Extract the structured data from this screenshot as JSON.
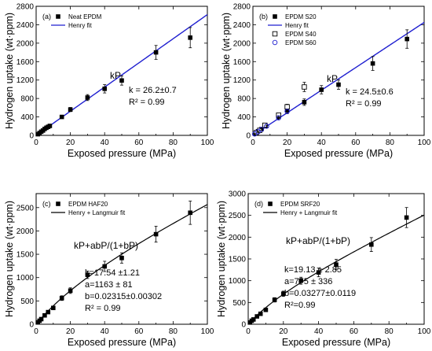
{
  "chart_data": [
    {
      "type": "scatter",
      "panel_label": "(a)",
      "xlabel": "Exposed pressure (MPa)",
      "ylabel": "Hydrogen uptake (wt·ppm)",
      "xlim": [
        0,
        100
      ],
      "ylim": [
        0,
        2800
      ],
      "xticks": [
        0,
        20,
        40,
        60,
        80,
        100
      ],
      "yticks": [
        0,
        400,
        800,
        1200,
        1600,
        2000,
        2400,
        2800
      ],
      "legend": [
        {
          "name": "Neat EPDM",
          "marker": "square-filled",
          "color": "#000000"
        },
        {
          "name": "Henry fit",
          "marker": "line",
          "color": "#1f1fd0"
        }
      ],
      "series": [
        {
          "name": "Neat EPDM",
          "marker": "square-filled",
          "color": "#000000",
          "points": [
            [
              1,
              25,
              10
            ],
            [
              2,
              50,
              10
            ],
            [
              3,
              80,
              12
            ],
            [
              4,
              105,
              15
            ],
            [
              5,
              140,
              20
            ],
            [
              6,
              165,
              20
            ],
            [
              7,
              185,
              25
            ],
            [
              8,
              205,
              25
            ],
            [
              15,
              400,
              30
            ],
            [
              20,
              560,
              45
            ],
            [
              30,
              820,
              65
            ],
            [
              40,
              1010,
              90
            ],
            [
              50,
              1190,
              100
            ],
            [
              70,
              1800,
              150
            ],
            [
              90,
              2120,
              220
            ]
          ]
        }
      ],
      "fit": {
        "name": "Henry fit",
        "kind": "henry",
        "k": 26.2,
        "x": [
          0,
          100
        ],
        "color": "#1f1fd0"
      },
      "annotations": {
        "model": "kP",
        "params": [
          "k = 26.2±0.7",
          "R² = 0.99"
        ]
      }
    },
    {
      "type": "scatter",
      "panel_label": "(b)",
      "xlabel": "Exposed pressure (MPa)",
      "ylabel": "Hydrogen uptake (wt·ppm)",
      "xlim": [
        0,
        100
      ],
      "ylim": [
        0,
        2800
      ],
      "xticks": [
        0,
        20,
        40,
        60,
        80,
        100
      ],
      "yticks": [
        0,
        400,
        800,
        1200,
        1600,
        2000,
        2400,
        2800
      ],
      "legend": [
        {
          "name": "EPDM S20",
          "marker": "square-filled",
          "color": "#000000"
        },
        {
          "name": "Henry fit",
          "marker": "line",
          "color": "#1f1fd0"
        },
        {
          "name": "EPDM S40",
          "marker": "square-open",
          "color": "#000000"
        },
        {
          "name": "EPDM S60",
          "marker": "circle-open",
          "color": "#1f1fd0"
        }
      ],
      "series": [
        {
          "name": "EPDM S20",
          "marker": "square-filled",
          "color": "#000000",
          "points": [
            [
              2,
              60,
              10
            ],
            [
              3,
              90,
              12
            ],
            [
              4,
              110,
              15
            ],
            [
              5,
              135,
              18
            ],
            [
              7,
              200,
              20
            ],
            [
              15,
              410,
              35
            ],
            [
              20,
              550,
              45
            ],
            [
              30,
              720,
              70
            ],
            [
              40,
              990,
              90
            ],
            [
              50,
              1100,
              100
            ],
            [
              70,
              1560,
              150
            ],
            [
              90,
              2090,
              200
            ]
          ]
        },
        {
          "name": "EPDM S40",
          "marker": "square-open",
          "color": "#000000",
          "points": [
            [
              2,
              60,
              10
            ],
            [
              4,
              110,
              15
            ],
            [
              7,
              220,
              25
            ],
            [
              15,
              440,
              40
            ],
            [
              20,
              620,
              55
            ],
            [
              30,
              1050,
              100
            ]
          ]
        },
        {
          "name": "EPDM S60",
          "marker": "circle-open",
          "color": "#1f1fd0",
          "points": [
            [
              1,
              30,
              10
            ],
            [
              3,
              80,
              12
            ],
            [
              5,
              130,
              15
            ],
            [
              8,
              200,
              20
            ],
            [
              15,
              380,
              35
            ],
            [
              20,
              520,
              50
            ]
          ]
        }
      ],
      "fit": {
        "name": "Henry fit",
        "kind": "henry",
        "k": 24.5,
        "x": [
          0,
          100
        ],
        "color": "#1f1fd0"
      },
      "annotations": {
        "model": "kP",
        "params": [
          "k = 24.5±0.6",
          "R² = 0.99"
        ]
      }
    },
    {
      "type": "scatter",
      "panel_label": "(c)",
      "xlabel": "Exposed pressure (MPa)",
      "ylabel": "Hydrogen uptake (wt·ppm)",
      "xlim": [
        0,
        100
      ],
      "ylim": [
        0,
        2800
      ],
      "xticks": [
        0,
        20,
        40,
        60,
        80,
        100
      ],
      "yticks": [
        0,
        500,
        1000,
        1500,
        2000,
        2500
      ],
      "legend": [
        {
          "name": "EPDM HAF20",
          "marker": "square-filled",
          "color": "#000000"
        },
        {
          "name": "Henry + Langmuir fit",
          "marker": "line",
          "color": "#000000"
        }
      ],
      "series": [
        {
          "name": "EPDM HAF20",
          "marker": "square-filled",
          "color": "#000000",
          "points": [
            [
              1,
              40,
              10
            ],
            [
              2,
              75,
              15
            ],
            [
              3,
              110,
              15
            ],
            [
              5,
              190,
              20
            ],
            [
              7,
              260,
              25
            ],
            [
              10,
              350,
              30
            ],
            [
              15,
              560,
              50
            ],
            [
              20,
              720,
              60
            ],
            [
              30,
              1060,
              80
            ],
            [
              40,
              1240,
              110
            ],
            [
              50,
              1420,
              110
            ],
            [
              70,
              1930,
              170
            ],
            [
              90,
              2390,
              250
            ]
          ]
        }
      ],
      "fit": {
        "name": "Henry + Langmuir fit",
        "kind": "henry_langmuir",
        "k": 17.54,
        "a": 1163,
        "b": 0.02315,
        "x": [
          0,
          100
        ],
        "color": "#000000"
      },
      "annotations": {
        "model": "kP+abP/(1+bP)",
        "params": [
          "k=17.54 ±1.21",
          "a=1163 ± 81",
          "b=0.02315±0.00302",
          "R² = 0.99"
        ]
      }
    },
    {
      "type": "scatter",
      "panel_label": "(d)",
      "xlabel": "Exposed pressure (MPa)",
      "ylabel": "Hydrogen uptake (wt·ppm)",
      "xlim": [
        0,
        100
      ],
      "ylim": [
        0,
        3000
      ],
      "xticks": [
        0,
        20,
        40,
        60,
        80,
        100
      ],
      "yticks": [
        0,
        500,
        1000,
        1500,
        2000,
        2500,
        3000
      ],
      "legend": [
        {
          "name": "EPDM SRF20",
          "marker": "square-filled",
          "color": "#000000"
        },
        {
          "name": "Henry + Langmuir fit",
          "marker": "line",
          "color": "#000000"
        }
      ],
      "series": [
        {
          "name": "EPDM SRF20",
          "marker": "square-filled",
          "color": "#000000",
          "points": [
            [
              1,
              40,
              10
            ],
            [
              2,
              80,
              15
            ],
            [
              3,
              110,
              15
            ],
            [
              5,
              180,
              20
            ],
            [
              7,
              240,
              25
            ],
            [
              10,
              330,
              30
            ],
            [
              15,
              560,
              50
            ],
            [
              20,
              700,
              60
            ],
            [
              30,
              1000,
              80
            ],
            [
              40,
              1190,
              100
            ],
            [
              50,
              1370,
              120
            ],
            [
              70,
              1830,
              160
            ],
            [
              90,
              2450,
              230
            ]
          ]
        }
      ],
      "fit": {
        "name": "Henry + Langmuir fit",
        "kind": "henry_langmuir",
        "k": 19.13,
        "a": 775,
        "b": 0.03277,
        "x": [
          0,
          100
        ],
        "color": "#000000"
      },
      "annotations": {
        "model": "kP+abP/(1+bP)",
        "params": [
          "k=19.13 ± 2.85",
          "a=775 ± 336",
          "b=0.03277±0.0119",
          "R²=0.99"
        ]
      }
    }
  ]
}
